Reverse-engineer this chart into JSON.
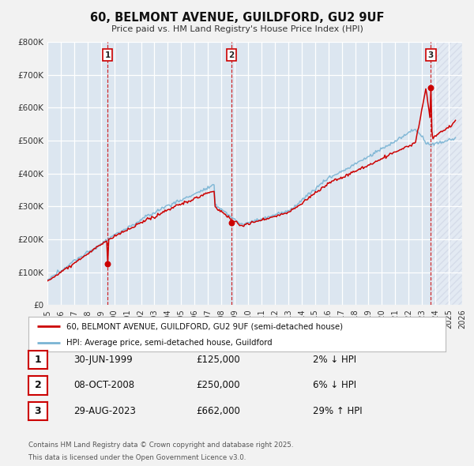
{
  "title": "60, BELMONT AVENUE, GUILDFORD, GU2 9UF",
  "subtitle": "Price paid vs. HM Land Registry's House Price Index (HPI)",
  "ylim": [
    0,
    800000
  ],
  "yticks": [
    0,
    100000,
    200000,
    300000,
    400000,
    500000,
    600000,
    700000,
    800000
  ],
  "ytick_labels": [
    "£0",
    "£100K",
    "£200K",
    "£300K",
    "£400K",
    "£500K",
    "£600K",
    "£700K",
    "£800K"
  ],
  "bg_color": "#dce6f0",
  "fig_bg_color": "#f2f2f2",
  "red_color": "#cc0000",
  "blue_color": "#7ab4d4",
  "legend_label_red": "60, BELMONT AVENUE, GUILDFORD, GU2 9UF (semi-detached house)",
  "legend_label_blue": "HPI: Average price, semi-detached house, Guildford",
  "vline_years": [
    1999.5,
    2008.75,
    2023.66
  ],
  "sale_years": [
    1999.5,
    2008.75,
    2023.66
  ],
  "sale_prices": [
    125000,
    250000,
    662000
  ],
  "transactions": [
    {
      "num": 1,
      "date": "30-JUN-1999",
      "price": "125,000",
      "pct": "2% ↓ HPI",
      "year_x": 1999.5
    },
    {
      "num": 2,
      "date": "08-OCT-2008",
      "price": "250,000",
      "pct": "6% ↓ HPI",
      "year_x": 2008.75
    },
    {
      "num": 3,
      "date": "29-AUG-2023",
      "price": "662,000",
      "pct": "29% ↑ HPI",
      "year_x": 2023.66
    }
  ],
  "footer_line1": "Contains HM Land Registry data © Crown copyright and database right 2025.",
  "footer_line2": "This data is licensed under the Open Government Licence v3.0.",
  "xmin": 1995.0,
  "xmax": 2026.0,
  "hatch_start": 2023.66
}
